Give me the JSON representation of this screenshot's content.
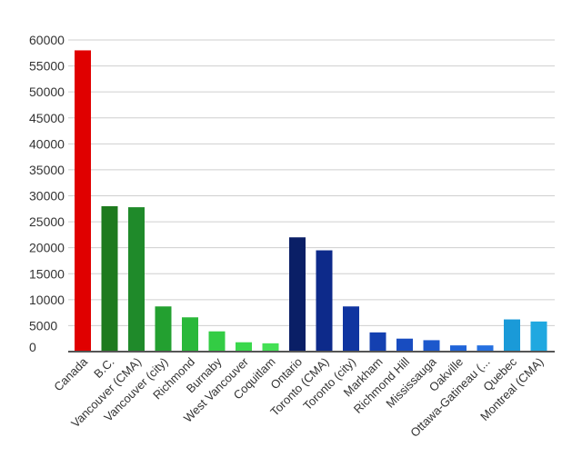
{
  "chart_data": {
    "type": "bar",
    "title": "",
    "xlabel": "",
    "ylabel": "",
    "ylim": [
      0,
      60000
    ],
    "yticks": [
      0,
      5000,
      10000,
      15000,
      20000,
      25000,
      30000,
      35000,
      40000,
      45000,
      50000,
      55000,
      60000
    ],
    "grid": true,
    "legend": "none",
    "categories": [
      "Canada",
      "B.C.",
      "Vancouver (CMA)",
      "Vancouver (city)",
      "Richmond",
      "Burnaby",
      "West Vancouver",
      "Coquitlam",
      "Ontario",
      "Toronto (CMA)",
      "Toronto (city)",
      "Markham",
      "Richmond Hill",
      "Mississauga",
      "Oakville",
      "Ottawa-Gatineau (...",
      "Quebec",
      "Montreal (CMA)"
    ],
    "values": [
      58000,
      28000,
      27800,
      8700,
      6600,
      3900,
      1800,
      1600,
      22000,
      19500,
      8700,
      3700,
      2500,
      2200,
      1200,
      1200,
      6200,
      5800
    ],
    "colors": [
      "#e00000",
      "#1e7a1e",
      "#1f8a2a",
      "#23a030",
      "#2ab83a",
      "#33cc44",
      "#3ad84c",
      "#44e055",
      "#0a1f66",
      "#0d2a8a",
      "#1035a0",
      "#1440b0",
      "#184cc0",
      "#1c58cc",
      "#2064d8",
      "#2670e0",
      "#1a9ad8",
      "#20a8e0"
    ]
  }
}
